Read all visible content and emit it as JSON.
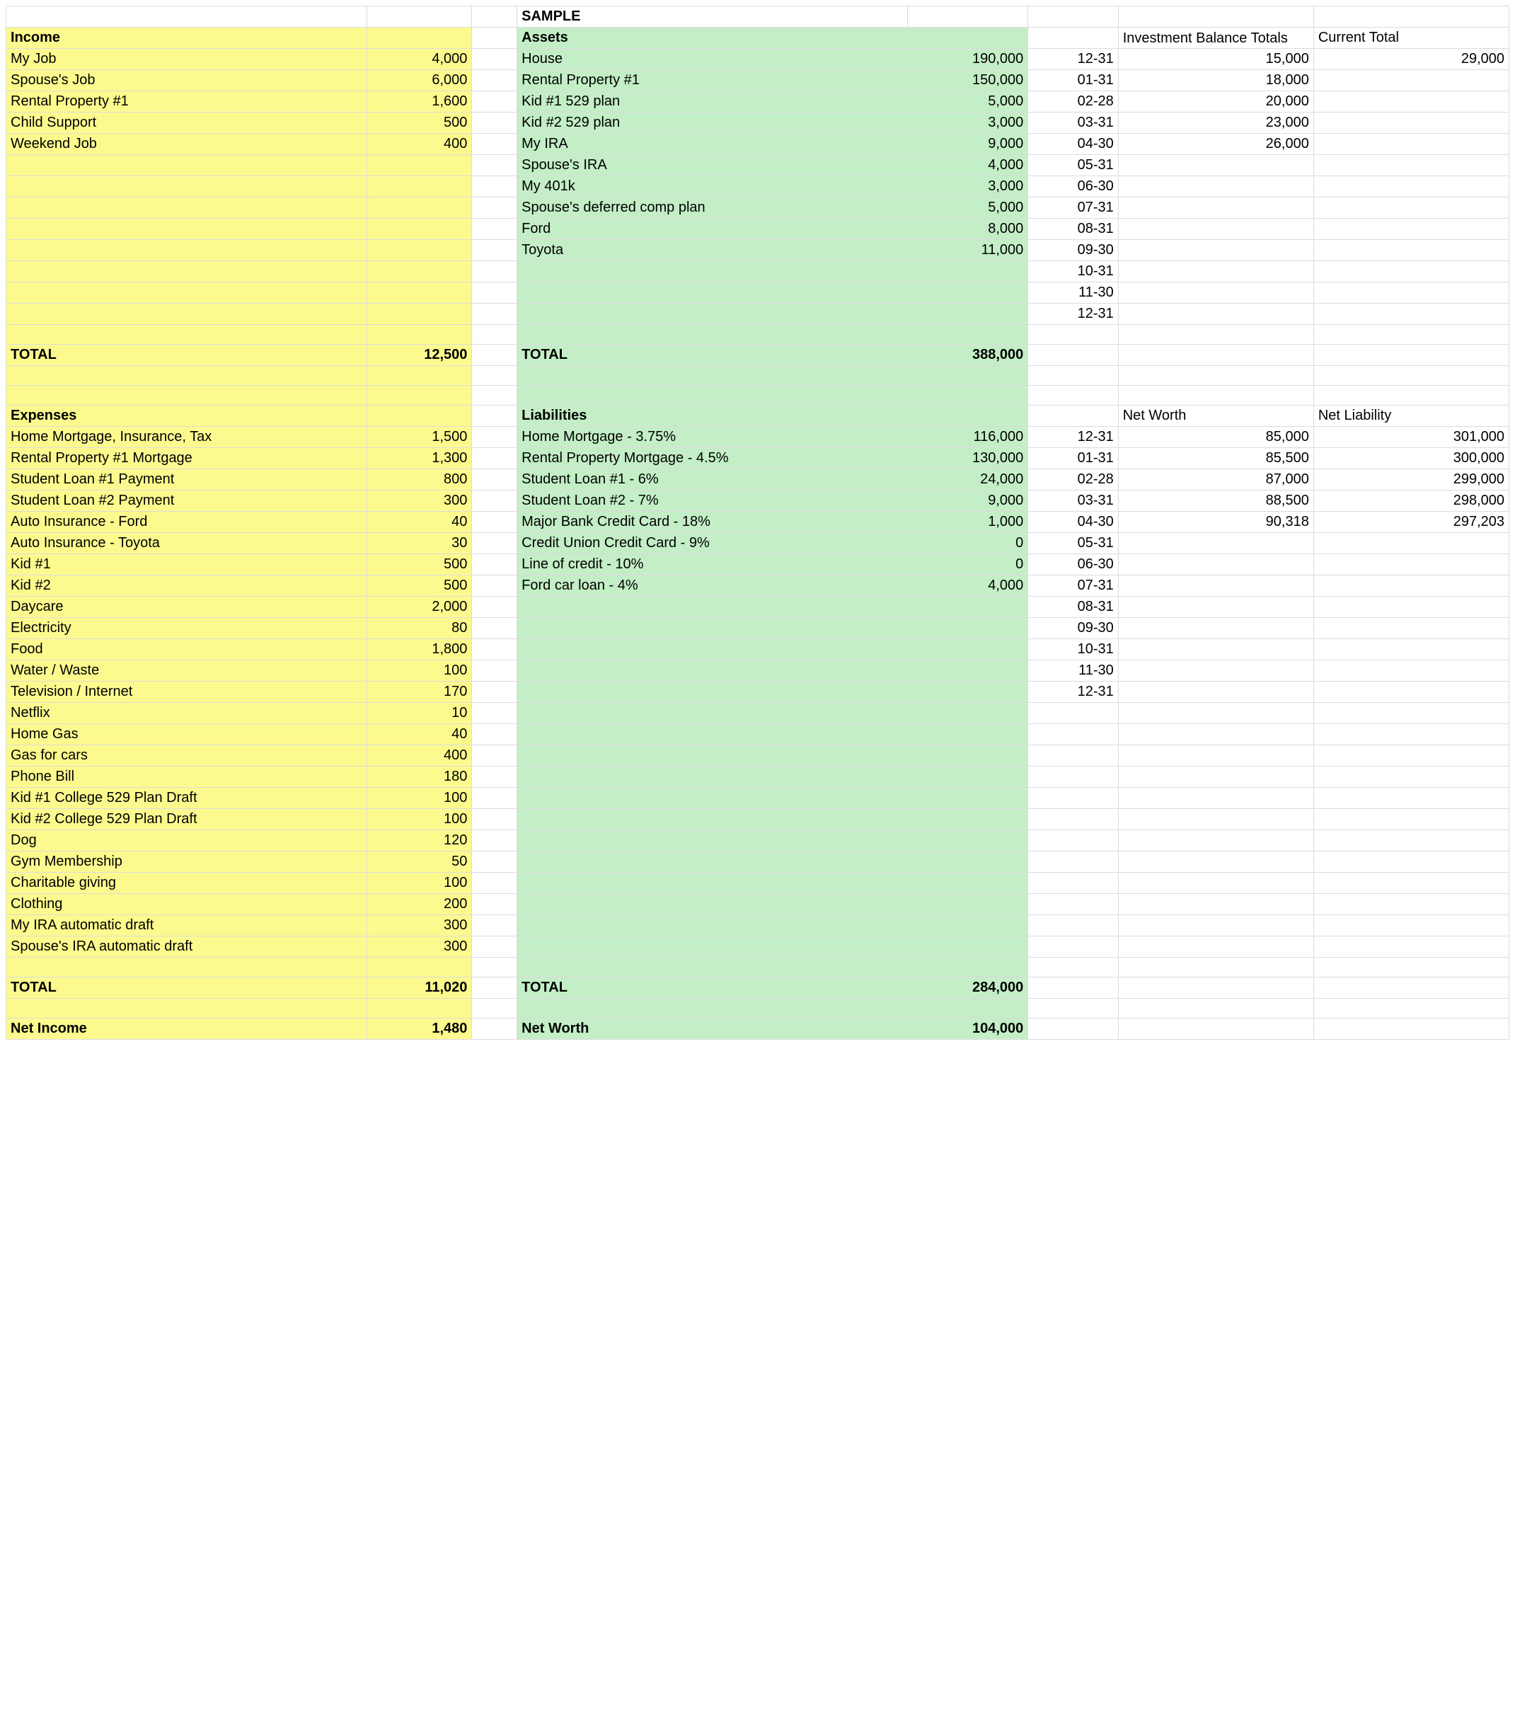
{
  "colors": {
    "yellow": "#fcfa8e",
    "green": "#c3eec6",
    "border": "#dcdcdc",
    "text": "#000000",
    "background": "#ffffff"
  },
  "typography": {
    "body_fontsize": 20,
    "section_fontsize": 28,
    "sample_fontsize": 36,
    "font_family": "Arial"
  },
  "layout": {
    "columns": [
      "A",
      "B",
      "spacer",
      "C",
      "D",
      "E",
      "F",
      "G"
    ],
    "yellow_cols": [
      "A",
      "B"
    ],
    "green_cols": [
      "C",
      "D"
    ]
  },
  "sample_label": "SAMPLE",
  "income": {
    "header": "Income",
    "rows": [
      {
        "label": "My Job",
        "value": "4,000"
      },
      {
        "label": "Spouse's Job",
        "value": "6,000"
      },
      {
        "label": "Rental Property #1",
        "value": "1,600"
      },
      {
        "label": "Child Support",
        "value": "500"
      },
      {
        "label": "Weekend Job",
        "value": "400"
      }
    ],
    "blank_rows_after": 8,
    "total_label": "TOTAL",
    "total_value": "12,500"
  },
  "assets": {
    "header": "Assets",
    "rows": [
      {
        "label": "House",
        "value": "190,000"
      },
      {
        "label": "Rental Property #1",
        "value": "150,000"
      },
      {
        "label": "Kid #1 529 plan",
        "value": "5,000"
      },
      {
        "label": "Kid #2 529 plan",
        "value": "3,000"
      },
      {
        "label": "My IRA",
        "value": "9,000"
      },
      {
        "label": "Spouse's IRA",
        "value": "4,000"
      },
      {
        "label": "My 401k",
        "value": "3,000"
      },
      {
        "label": "Spouse's deferred comp plan",
        "value": "5,000"
      },
      {
        "label": "Ford",
        "value": "8,000"
      },
      {
        "label": "Toyota",
        "value": "11,000"
      }
    ],
    "blank_rows_after": 3,
    "total_label": "TOTAL",
    "total_value": "388,000"
  },
  "investment_tracker": {
    "header_f": "Investment Balance Totals",
    "header_g": "Current Total",
    "current_total": "29,000",
    "rows": [
      {
        "date": "12-31",
        "val": "15,000"
      },
      {
        "date": "01-31",
        "val": "18,000"
      },
      {
        "date": "02-28",
        "val": "20,000"
      },
      {
        "date": "03-31",
        "val": "23,000"
      },
      {
        "date": "04-30",
        "val": "26,000"
      },
      {
        "date": "05-31",
        "val": ""
      },
      {
        "date": "06-30",
        "val": ""
      },
      {
        "date": "07-31",
        "val": ""
      },
      {
        "date": "08-31",
        "val": ""
      },
      {
        "date": "09-30",
        "val": ""
      },
      {
        "date": "10-31",
        "val": ""
      },
      {
        "date": "11-30",
        "val": ""
      },
      {
        "date": "12-31",
        "val": ""
      }
    ]
  },
  "expenses": {
    "header": "Expenses",
    "rows": [
      {
        "label": "Home Mortgage, Insurance, Tax",
        "value": "1,500"
      },
      {
        "label": "Rental Property #1 Mortgage",
        "value": "1,300"
      },
      {
        "label": "Student Loan #1 Payment",
        "value": "800"
      },
      {
        "label": "Student Loan #2 Payment",
        "value": "300"
      },
      {
        "label": "Auto Insurance - Ford",
        "value": "40"
      },
      {
        "label": "Auto Insurance - Toyota",
        "value": "30"
      },
      {
        "label": "Kid #1",
        "value": "500"
      },
      {
        "label": "Kid #2",
        "value": "500"
      },
      {
        "label": "Daycare",
        "value": "2,000"
      },
      {
        "label": "Electricity",
        "value": "80"
      },
      {
        "label": "Food",
        "value": "1,800"
      },
      {
        "label": "Water / Waste",
        "value": "100"
      },
      {
        "label": "Television / Internet",
        "value": "170"
      },
      {
        "label": "Netflix",
        "value": "10"
      },
      {
        "label": "Home Gas",
        "value": "40"
      },
      {
        "label": "Gas for cars",
        "value": "400"
      },
      {
        "label": "Phone Bill",
        "value": "180"
      },
      {
        "label": "Kid #1 College 529 Plan Draft",
        "value": "100"
      },
      {
        "label": "Kid #2 College 529 Plan Draft",
        "value": "100"
      },
      {
        "label": "Dog",
        "value": "120"
      },
      {
        "label": "Gym Membership",
        "value": "50"
      },
      {
        "label": "Charitable giving",
        "value": "100"
      },
      {
        "label": "Clothing",
        "value": "200"
      },
      {
        "label": "My IRA automatic draft",
        "value": "300"
      },
      {
        "label": "Spouse's IRA automatic draft",
        "value": "300"
      }
    ],
    "total_label": "TOTAL",
    "total_value": "11,020",
    "net_label": "Net Income",
    "net_value": "1,480"
  },
  "liabilities": {
    "header": "Liabilities",
    "rows": [
      {
        "label": "Home Mortgage - 3.75%",
        "value": "116,000"
      },
      {
        "label": "Rental Property Mortgage - 4.5%",
        "value": "130,000"
      },
      {
        "label": "Student Loan #1 - 6%",
        "value": "24,000"
      },
      {
        "label": "Student Loan #2 - 7%",
        "value": "9,000"
      },
      {
        "label": "Major Bank Credit Card - 18%",
        "value": "1,000"
      },
      {
        "label": "Credit Union Credit Card - 9%",
        "value": "0"
      },
      {
        "label": "Line of credit - 10%",
        "value": "0"
      },
      {
        "label": "Ford car loan - 4%",
        "value": "4,000"
      }
    ],
    "total_label": "TOTAL",
    "total_value": "284,000",
    "net_label": "Net Worth",
    "net_value": "104,000"
  },
  "networth_tracker": {
    "header_f": "Net Worth",
    "header_g": "Net Liability",
    "rows": [
      {
        "date": "12-31",
        "nw": "85,000",
        "nl": "301,000"
      },
      {
        "date": "01-31",
        "nw": "85,500",
        "nl": "300,000"
      },
      {
        "date": "02-28",
        "nw": "87,000",
        "nl": "299,000"
      },
      {
        "date": "03-31",
        "nw": "88,500",
        "nl": "298,000"
      },
      {
        "date": "04-30",
        "nw": "90,318",
        "nl": "297,203"
      },
      {
        "date": "05-31",
        "nw": "",
        "nl": ""
      },
      {
        "date": "06-30",
        "nw": "",
        "nl": ""
      },
      {
        "date": "07-31",
        "nw": "",
        "nl": ""
      },
      {
        "date": "08-31",
        "nw": "",
        "nl": ""
      },
      {
        "date": "09-30",
        "nw": "",
        "nl": ""
      },
      {
        "date": "10-31",
        "nw": "",
        "nl": ""
      },
      {
        "date": "11-30",
        "nw": "",
        "nl": ""
      },
      {
        "date": "12-31",
        "nw": "",
        "nl": ""
      }
    ]
  }
}
